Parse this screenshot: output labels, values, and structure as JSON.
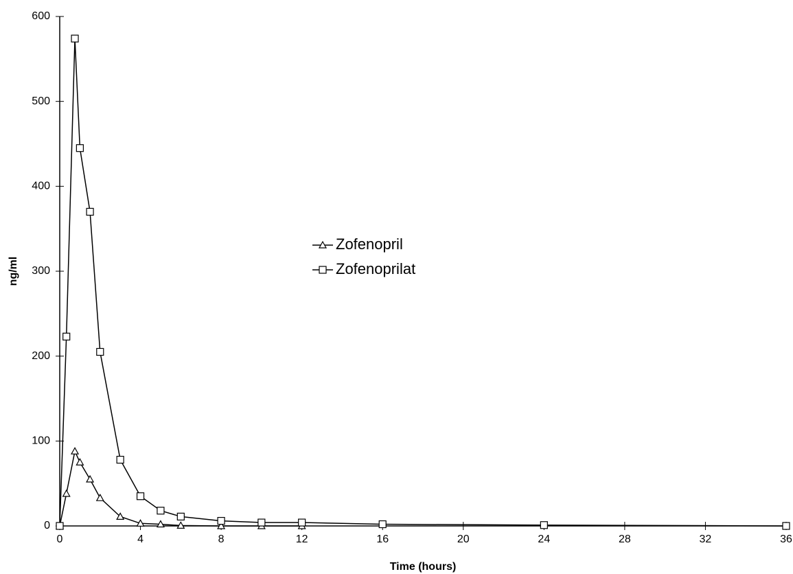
{
  "chart_data": {
    "type": "line",
    "x_label": "Time (hours)",
    "y_label": "ng/ml",
    "xlim": [
      0,
      36
    ],
    "xticks": [
      0,
      4,
      8,
      12,
      16,
      20,
      24,
      28,
      32,
      36
    ],
    "ylim": [
      0,
      600
    ],
    "yticks": [
      0,
      100,
      200,
      300,
      400,
      500,
      600
    ],
    "grid": false,
    "legend": "center",
    "series": [
      {
        "name": "Zofenopril",
        "color": "#000000",
        "marker": "triangle",
        "x": [
          0,
          0.33,
          0.75,
          1,
          1.5,
          2,
          3,
          4,
          5,
          6,
          8,
          10,
          12
        ],
        "values": [
          0,
          38,
          88,
          75,
          55,
          33,
          11,
          3,
          2,
          0.5,
          0,
          0,
          0
        ]
      },
      {
        "name": "Zofenoprilat",
        "color": "#000000",
        "marker": "square",
        "x": [
          0,
          0.33,
          0.75,
          1,
          1.5,
          2,
          3,
          4,
          5,
          6,
          8,
          10,
          12,
          16,
          24,
          36
        ],
        "values": [
          0,
          223,
          574,
          445,
          370,
          205,
          78,
          35,
          18,
          11,
          6,
          4,
          4,
          2,
          1,
          0
        ]
      }
    ]
  }
}
